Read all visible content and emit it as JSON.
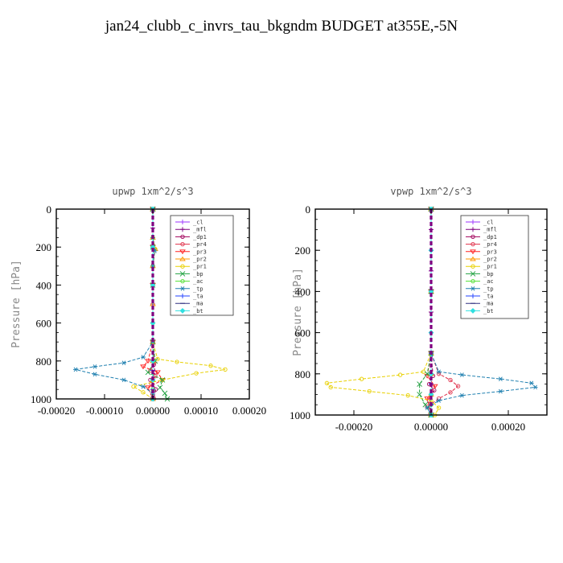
{
  "figure": {
    "title": "jan24_clubb_c_invrs_tau_bkgndm  BUDGET at355E,-5N"
  },
  "chart_data": [
    {
      "type": "line",
      "title": "upwp   1xm^2/s^3",
      "ylabel": "Pressure [hPa]",
      "ylim": [
        1000,
        0
      ],
      "xlim": [
        -0.0002,
        0.0002
      ],
      "xticks": [
        "-0.00020",
        "-0.00010",
        "0.00000",
        "0.00010",
        "0.00020"
      ],
      "xtick_values": [
        -0.0002,
        -0.0001,
        0,
        0.0001,
        0.0002
      ],
      "yticks": [
        "0",
        "200",
        "400",
        "600",
        "800",
        "1000"
      ],
      "ytick_values": [
        0,
        200,
        400,
        600,
        800,
        1000
      ],
      "legend_position": "top-right",
      "series": [
        {
          "name": "_cl",
          "color": "#9b30ff",
          "marker": "+",
          "x": [
            0,
            0,
            0,
            0,
            0,
            0,
            0,
            0,
            0,
            0,
            0
          ],
          "y": [
            0,
            100,
            200,
            300,
            400,
            500,
            600,
            700,
            800,
            900,
            1000
          ]
        },
        {
          "name": "_mfl",
          "color": "#7f007f",
          "marker": "+",
          "x": [
            0,
            0,
            0,
            0,
            0,
            0,
            0,
            0,
            0,
            0,
            0
          ],
          "y": [
            0,
            100,
            200,
            300,
            400,
            500,
            600,
            700,
            800,
            900,
            1000
          ]
        },
        {
          "name": "_dp1",
          "color": "#a0005a",
          "marker": "o",
          "x": [
            0,
            0,
            0,
            0,
            2e-06,
            5e-06,
            -5e-06,
            6e-06,
            2e-06
          ],
          "y": [
            0,
            200,
            400,
            700,
            820,
            860,
            900,
            950,
            1000
          ]
        },
        {
          "name": "_pr4",
          "color": "#e0304a",
          "marker": "o",
          "x": [
            0,
            0,
            0,
            0,
            3e-06,
            -5e-06,
            5e-06,
            -3e-06,
            0
          ],
          "y": [
            0,
            200,
            400,
            700,
            810,
            850,
            880,
            920,
            1000
          ]
        },
        {
          "name": "_pr3",
          "color": "#ff2020",
          "marker": "v",
          "x": [
            0,
            0,
            0,
            0,
            -1e-05,
            -2e-05,
            1e-05,
            2e-05,
            -1e-05,
            0
          ],
          "y": [
            0,
            200,
            400,
            700,
            800,
            830,
            860,
            900,
            940,
            1000
          ]
        },
        {
          "name": "_pr2",
          "color": "#ff9900",
          "marker": "^",
          "x": [
            0,
            0,
            5e-06,
            0,
            0,
            0,
            0,
            0,
            0
          ],
          "y": [
            0,
            150,
            210,
            300,
            500,
            700,
            800,
            900,
            1000
          ]
        },
        {
          "name": "_pr1",
          "color": "#e8d000",
          "marker": "o",
          "x": [
            0,
            0,
            5e-06,
            0,
            0,
            1e-05,
            5e-05,
            0.00012,
            0.00015,
            9e-05,
            2e-05,
            -4e-05,
            -2e-05,
            0
          ],
          "y": [
            0,
            150,
            210,
            300,
            700,
            790,
            805,
            825,
            845,
            865,
            900,
            935,
            965,
            1000
          ]
        },
        {
          "name": "_bp",
          "color": "#20a040",
          "marker": "x",
          "x": [
            0,
            0,
            0,
            0,
            5e-06,
            -1e-05,
            2e-05,
            1.5e-05,
            2.5e-05,
            3e-05
          ],
          "y": [
            0,
            200,
            400,
            700,
            800,
            860,
            900,
            940,
            970,
            1000
          ]
        },
        {
          "name": "_ac",
          "color": "#50e030",
          "marker": "o",
          "x": [
            0,
            0,
            0,
            0,
            0,
            0,
            0,
            0
          ],
          "y": [
            0,
            200,
            400,
            600,
            800,
            900,
            950,
            1000
          ]
        },
        {
          "name": "_tp",
          "color": "#2080b0",
          "marker": "*",
          "x": [
            0,
            0,
            4e-06,
            0,
            0,
            -2e-05,
            -6e-05,
            -0.00012,
            -0.00016,
            -0.00012,
            -6e-05,
            -2e-05,
            0,
            0
          ],
          "y": [
            0,
            150,
            220,
            300,
            700,
            780,
            810,
            830,
            845,
            870,
            900,
            935,
            970,
            1000
          ]
        },
        {
          "name": "_ta",
          "color": "#2040ff",
          "marker": "+",
          "x": [
            0,
            0,
            0,
            0,
            0,
            0,
            0,
            0,
            0
          ],
          "y": [
            0,
            200,
            400,
            600,
            800,
            850,
            900,
            950,
            1000
          ]
        },
        {
          "name": "_ma",
          "color": "#303080",
          "marker": "-",
          "x": [
            0,
            0,
            0,
            0,
            0,
            0,
            0
          ],
          "y": [
            0,
            200,
            400,
            600,
            800,
            900,
            1000
          ]
        },
        {
          "name": "_bt",
          "color": "#30e0e0",
          "marker": "diamond",
          "x": [
            0,
            0,
            0,
            0,
            0,
            0,
            0
          ],
          "y": [
            0,
            200,
            400,
            600,
            800,
            900,
            1000
          ]
        }
      ]
    },
    {
      "type": "line",
      "title": "vpwp   1xm^2/s^3",
      "ylabel": "Pressure [hPa]",
      "ylim": [
        1000,
        0
      ],
      "xlim": [
        -0.0003,
        0.0003
      ],
      "xticks": [
        "-0.00020",
        "0.00000",
        "0.00020"
      ],
      "xtick_values": [
        -0.0002,
        0,
        0.0002
      ],
      "yticks": [
        "0",
        "200",
        "400",
        "600",
        "800",
        "1000"
      ],
      "ytick_values": [
        0,
        200,
        400,
        600,
        800,
        1000
      ],
      "legend_position": "top-right",
      "series": [
        {
          "name": "_cl",
          "color": "#9b30ff",
          "marker": "+",
          "x": [
            0,
            0,
            0,
            0,
            0,
            0,
            0,
            0,
            0,
            0,
            0
          ],
          "y": [
            0,
            100,
            200,
            300,
            400,
            500,
            600,
            700,
            800,
            900,
            1000
          ]
        },
        {
          "name": "_mfl",
          "color": "#7f007f",
          "marker": "+",
          "x": [
            0,
            0,
            0,
            0,
            0,
            0,
            0,
            0,
            0,
            0,
            0
          ],
          "y": [
            0,
            100,
            200,
            300,
            400,
            500,
            600,
            700,
            800,
            900,
            1000
          ]
        },
        {
          "name": "_dp1",
          "color": "#a0005a",
          "marker": "o",
          "x": [
            0,
            0,
            0,
            5e-06,
            -5e-06,
            8e-06,
            -5e-06,
            0
          ],
          "y": [
            0,
            400,
            700,
            810,
            850,
            880,
            930,
            1000
          ]
        },
        {
          "name": "_pr4",
          "color": "#e0304a",
          "marker": "o",
          "x": [
            0,
            0,
            0,
            2e-05,
            5e-05,
            7e-05,
            5e-05,
            2e-05,
            -1e-05,
            0
          ],
          "y": [
            0,
            400,
            700,
            800,
            830,
            860,
            890,
            920,
            960,
            1000
          ]
        },
        {
          "name": "_pr3",
          "color": "#ff2020",
          "marker": "v",
          "x": [
            0,
            0,
            0,
            -1e-05,
            1e-05,
            -1e-05,
            0
          ],
          "y": [
            0,
            400,
            700,
            810,
            860,
            920,
            1000
          ]
        },
        {
          "name": "_pr2",
          "color": "#ff9900",
          "marker": "^",
          "x": [
            0,
            0,
            0,
            0,
            0,
            0
          ],
          "y": [
            0,
            400,
            700,
            800,
            900,
            1000
          ]
        },
        {
          "name": "_pr1",
          "color": "#e8d000",
          "marker": "o",
          "x": [
            0,
            0,
            0,
            -2e-05,
            -8e-05,
            -0.00018,
            -0.00027,
            -0.00026,
            -0.00016,
            -6e-05,
            0,
            2e-05,
            1e-05
          ],
          "y": [
            0,
            400,
            700,
            790,
            805,
            825,
            845,
            865,
            885,
            905,
            930,
            965,
            1000
          ]
        },
        {
          "name": "_bp",
          "color": "#20a040",
          "marker": "x",
          "x": [
            0,
            0,
            0,
            -1e-05,
            -3e-05,
            -3e-05,
            -1.5e-05,
            0
          ],
          "y": [
            0,
            400,
            700,
            800,
            850,
            900,
            950,
            1000
          ]
        },
        {
          "name": "_ac",
          "color": "#50e030",
          "marker": "o",
          "x": [
            0,
            0,
            0,
            0,
            0,
            0,
            0
          ],
          "y": [
            0,
            400,
            700,
            800,
            900,
            950,
            1000
          ]
        },
        {
          "name": "_tp",
          "color": "#2080b0",
          "marker": "*",
          "x": [
            0,
            0,
            0,
            2e-05,
            8e-05,
            0.00018,
            0.00026,
            0.00027,
            0.00018,
            8e-05,
            2e-05,
            -1e-05,
            0
          ],
          "y": [
            0,
            400,
            700,
            790,
            805,
            825,
            845,
            865,
            885,
            905,
            930,
            965,
            1000
          ]
        },
        {
          "name": "_ta",
          "color": "#2040ff",
          "marker": "+",
          "x": [
            0,
            0,
            0,
            0,
            0,
            0,
            0,
            0
          ],
          "y": [
            0,
            400,
            700,
            800,
            850,
            900,
            950,
            1000
          ]
        },
        {
          "name": "_ma",
          "color": "#303080",
          "marker": "-",
          "x": [
            0,
            0,
            0,
            0,
            0,
            0,
            0
          ],
          "y": [
            0,
            200,
            400,
            600,
            800,
            900,
            1000
          ]
        },
        {
          "name": "_bt",
          "color": "#30e0e0",
          "marker": "diamond",
          "x": [
            0,
            0,
            0,
            0,
            0,
            0,
            0
          ],
          "y": [
            0,
            200,
            400,
            600,
            800,
            900,
            1000
          ]
        }
      ]
    }
  ]
}
